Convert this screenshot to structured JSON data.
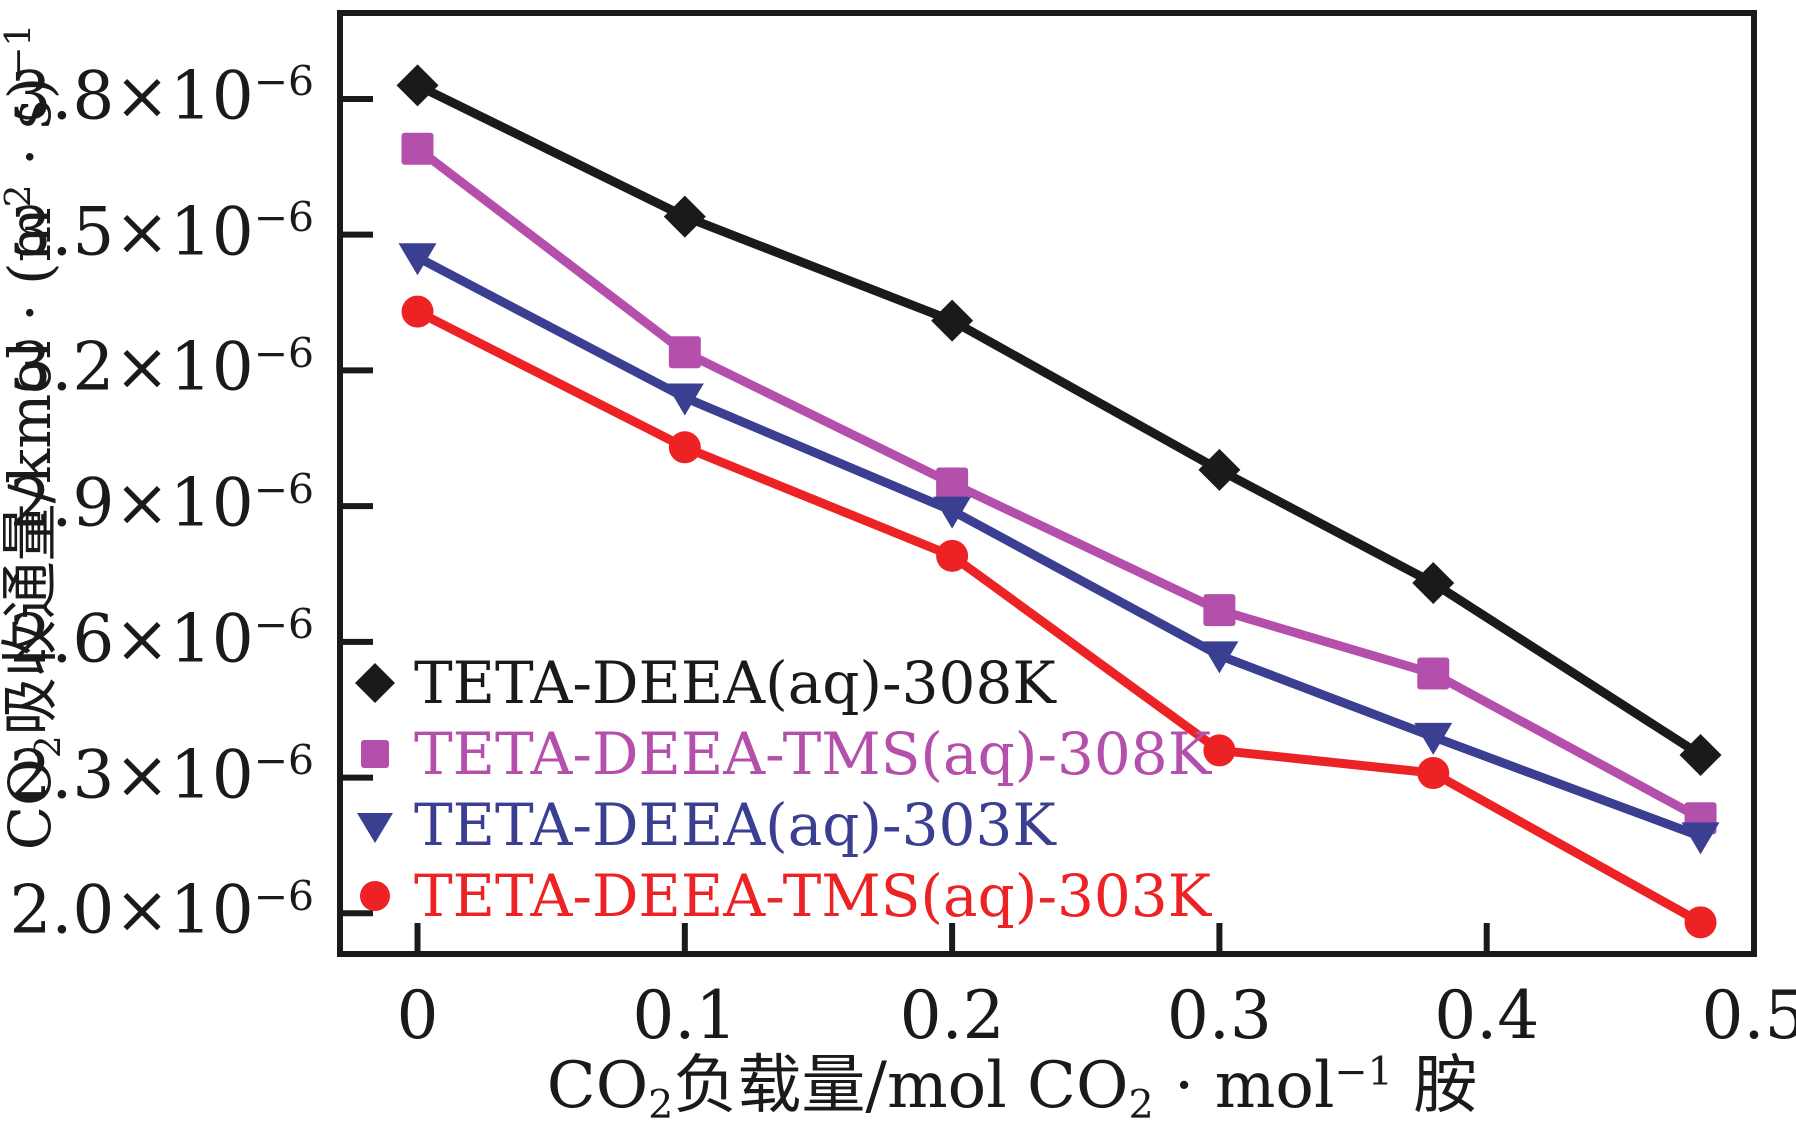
{
  "colors": {
    "frame": "#1a1a1a",
    "background": "#ffffff"
  },
  "chart_data": {
    "type": "line",
    "title": "",
    "grid": false,
    "legend_position": "lower-left-inside",
    "xlabel_segments": [
      {
        "t": "CO"
      },
      {
        "t": "2",
        "sub": true
      },
      {
        "t": "负载量/mol CO"
      },
      {
        "t": "2",
        "sub": true
      },
      {
        "t": " · mol"
      },
      {
        "t": "−1",
        "sup": true
      },
      {
        "t": " 胺"
      }
    ],
    "ylabel_segments": [
      {
        "t": "CO"
      },
      {
        "t": "2",
        "sub": true
      },
      {
        "t": "吸收通量/kmol · (m"
      },
      {
        "t": "2",
        "sup": true
      },
      {
        "t": " · s)"
      },
      {
        "t": "−1",
        "sup": true
      }
    ],
    "xlim": [
      -0.029,
      0.5
    ],
    "ylim_e6": [
      1.91,
      3.99
    ],
    "xticks": {
      "values": [
        0,
        0.1,
        0.2,
        0.3,
        0.4,
        0.5
      ],
      "labels": [
        "0",
        "0.1",
        "0.2",
        "0.3",
        "0.4",
        "0.5"
      ]
    },
    "yticks": {
      "unit": "1e-6",
      "values_e6": [
        3.8,
        3.5,
        3.2,
        2.9,
        2.6,
        2.3,
        2.0
      ],
      "label_segments": [
        [
          {
            "t": "3.8×10"
          },
          {
            "t": "−6",
            "sup": true
          }
        ],
        [
          {
            "t": "3.5×10"
          },
          {
            "t": "−6",
            "sup": true
          }
        ],
        [
          {
            "t": "3.2×10"
          },
          {
            "t": "−6",
            "sup": true
          }
        ],
        [
          {
            "t": "2.9×10"
          },
          {
            "t": "−6",
            "sup": true
          }
        ],
        [
          {
            "t": "2.6×10"
          },
          {
            "t": "−6",
            "sup": true
          }
        ],
        [
          {
            "t": "2.3×10"
          },
          {
            "t": "−6",
            "sup": true
          }
        ],
        [
          {
            "t": "2.0×10"
          },
          {
            "t": "−6",
            "sup": true
          }
        ]
      ]
    },
    "x": [
      0,
      0.1,
      0.2,
      0.3,
      0.38,
      0.48
    ],
    "series": [
      {
        "name": "TETA-DEEA(aq)-308K",
        "color": "#1a1a1a",
        "marker": "diamond",
        "values_e6": [
          3.83,
          3.54,
          3.31,
          2.98,
          2.73,
          2.35
        ]
      },
      {
        "name": "TETA-DEEA-TMS(aq)-308K",
        "color": "#b44fac",
        "marker": "square",
        "values_e6": [
          3.69,
          3.24,
          2.95,
          2.67,
          2.53,
          2.21
        ]
      },
      {
        "name": "TETA-DEEA(aq)-303K",
        "color": "#3a3f91",
        "marker": "triangle-down",
        "values_e6": [
          3.45,
          3.14,
          2.89,
          2.57,
          2.39,
          2.17
        ]
      },
      {
        "name": "TETA-DEEA-TMS(aq)-303K",
        "color": "#ec2224",
        "marker": "circle",
        "values_e6": [
          3.33,
          3.03,
          2.79,
          2.36,
          2.31,
          1.98
        ]
      }
    ]
  }
}
